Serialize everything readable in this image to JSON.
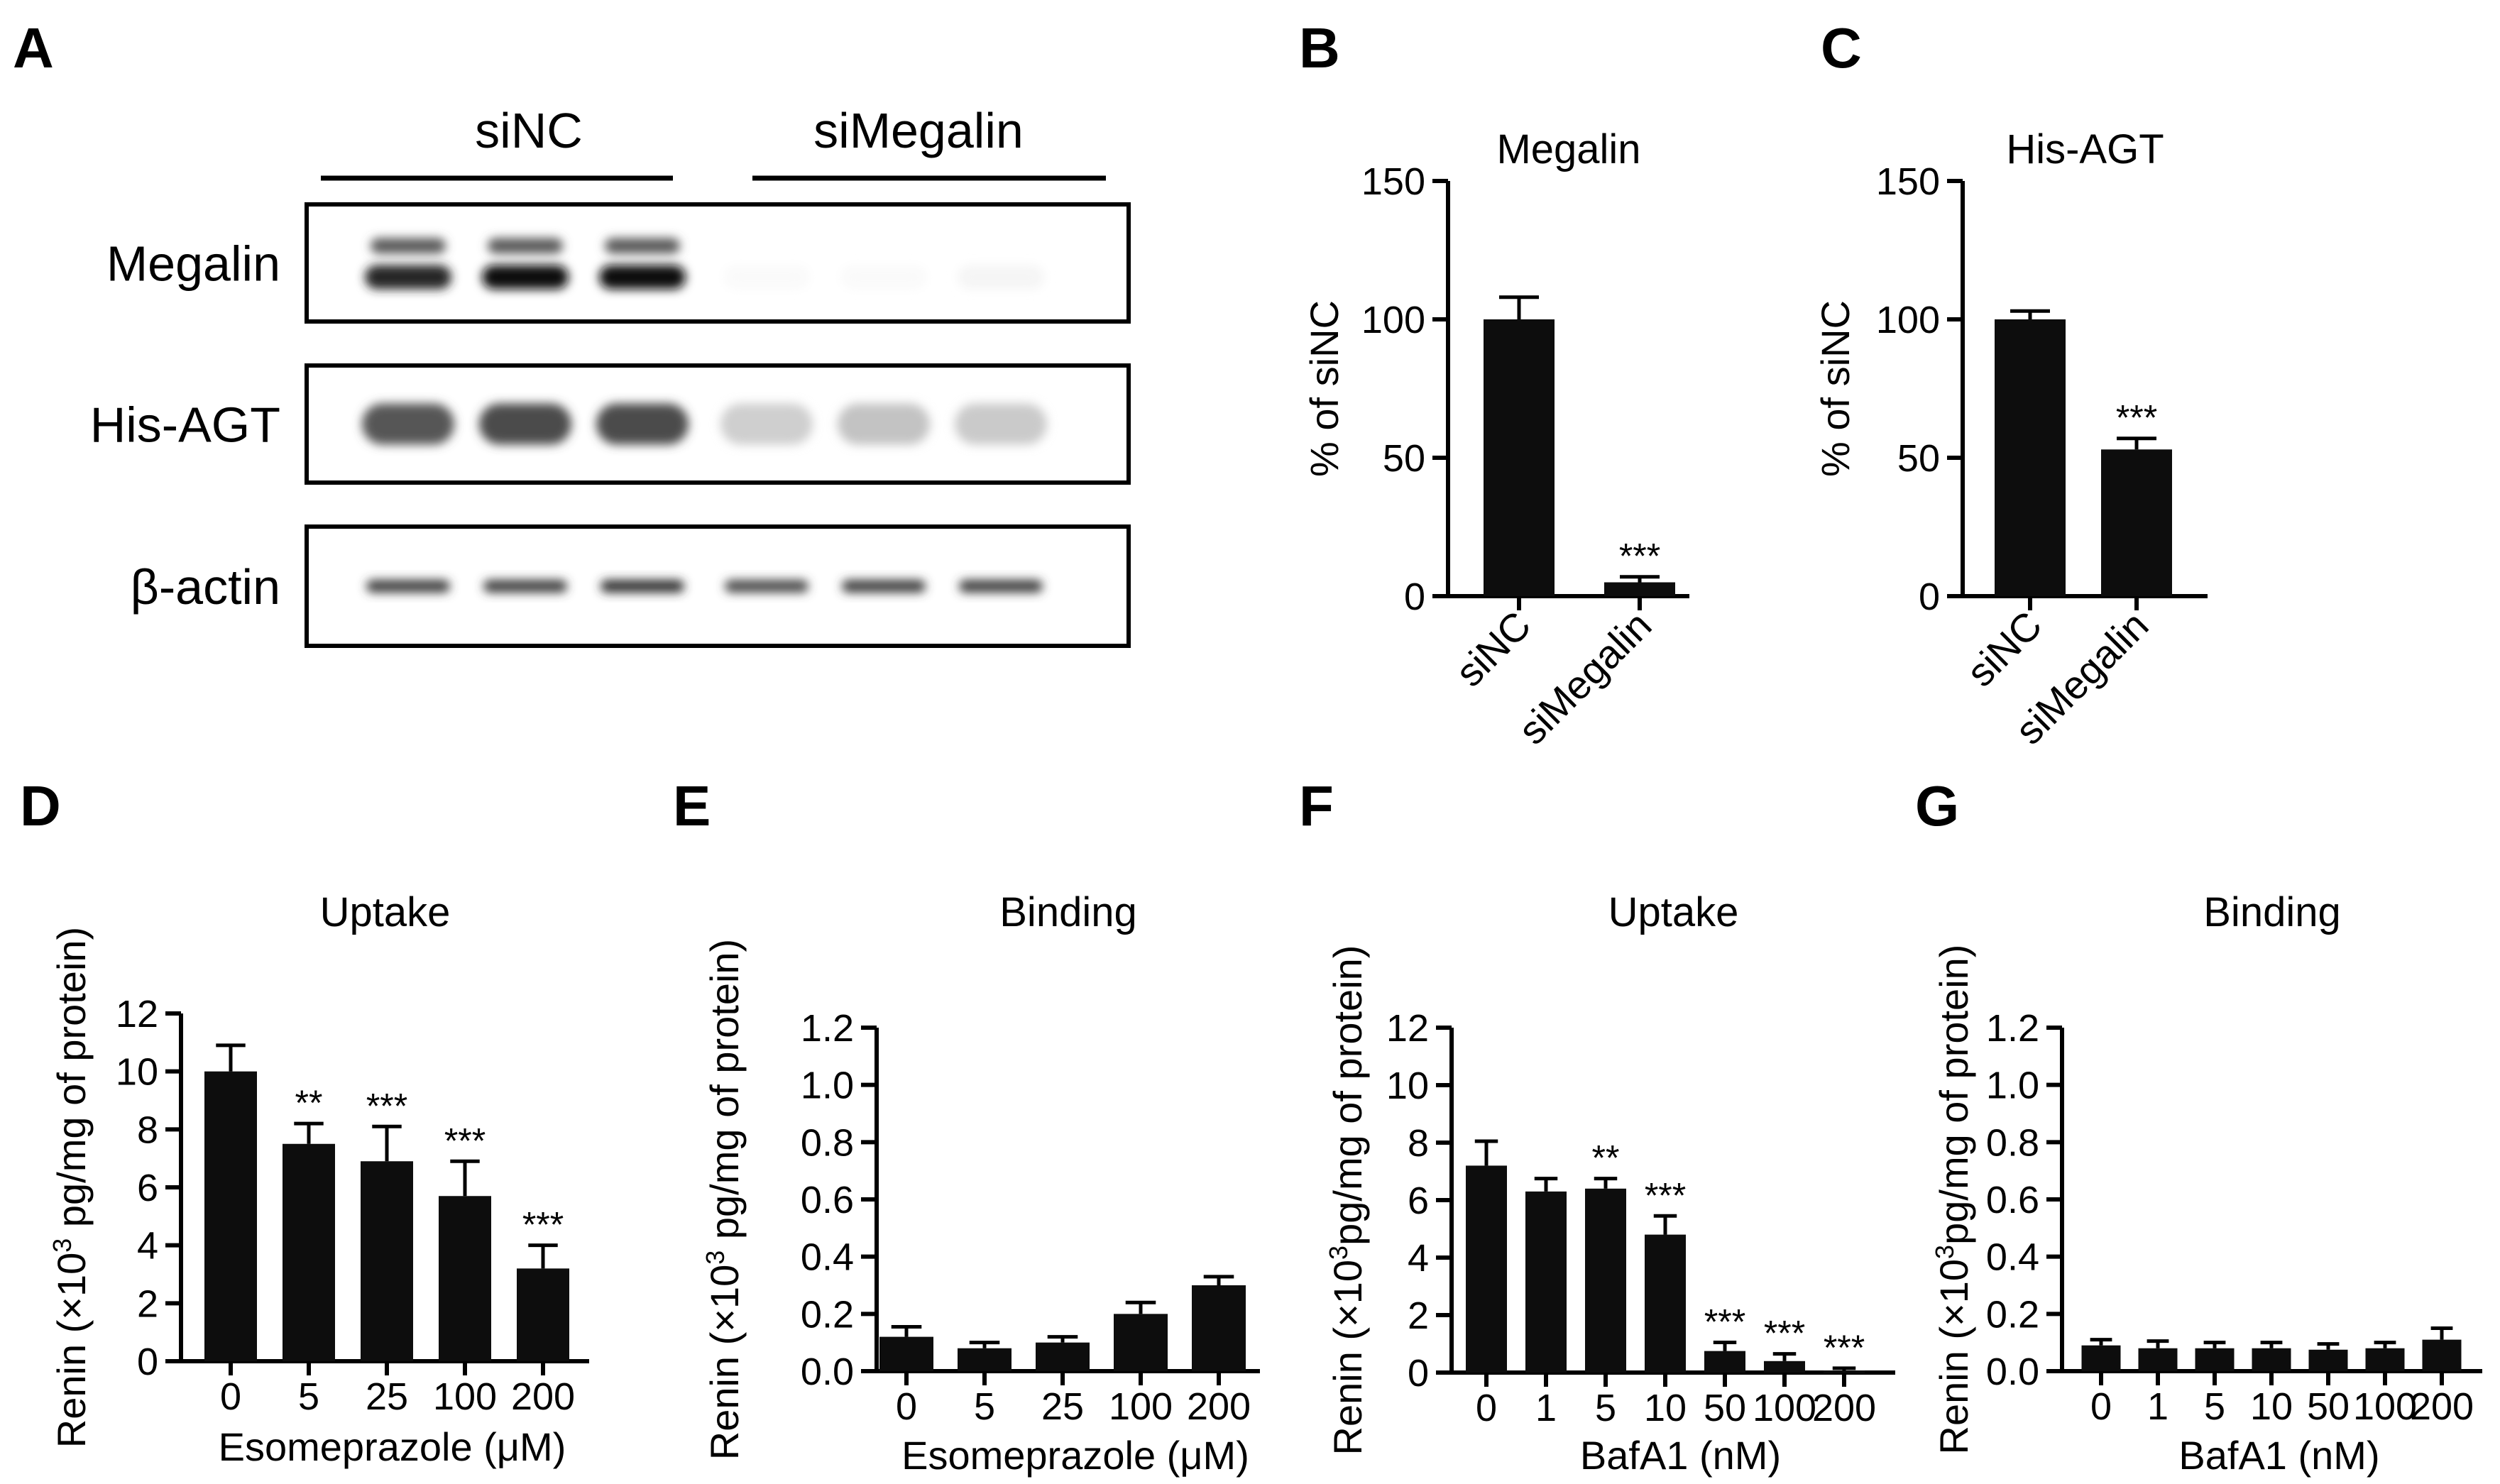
{
  "chart_data": [
    {
      "id": "A",
      "type": "western-blot",
      "panel": "A",
      "groups": [
        "siNC",
        "siMegalin"
      ],
      "rows": [
        "Megalin",
        "His-AGT",
        "β-actin"
      ],
      "lanes": 6,
      "intensity": [
        [
          0.9,
          1.0,
          1.0,
          0.02,
          0.02,
          0.04
        ],
        [
          0.7,
          0.75,
          0.75,
          0.2,
          0.25,
          0.22
        ],
        [
          0.8,
          0.8,
          0.85,
          0.75,
          0.8,
          0.8
        ]
      ]
    },
    {
      "id": "B",
      "type": "bar",
      "panel": "B",
      "title": "Megalin",
      "categories": [
        "siNC",
        "siMegalin"
      ],
      "values": [
        100,
        5
      ],
      "errors": [
        8,
        2
      ],
      "significance": [
        "",
        "***"
      ],
      "ylabel": "% of siNC",
      "xlabel": "",
      "ylim": [
        0,
        150
      ],
      "yticks": [
        "0",
        "50",
        "100",
        "150"
      ],
      "rotate_xticks": true
    },
    {
      "id": "C",
      "type": "bar",
      "panel": "C",
      "title": "His-AGT",
      "categories": [
        "siNC",
        "siMegalin"
      ],
      "values": [
        100,
        53
      ],
      "errors": [
        3,
        4
      ],
      "significance": [
        "",
        "***"
      ],
      "ylabel": "% of siNC",
      "xlabel": "",
      "ylim": [
        0,
        150
      ],
      "yticks": [
        "0",
        "50",
        "100",
        "150"
      ],
      "rotate_xticks": true
    },
    {
      "id": "D",
      "type": "bar",
      "panel": "D",
      "title": "Uptake",
      "categories": [
        "0",
        "5",
        "25",
        "100",
        "200"
      ],
      "values": [
        10.0,
        7.5,
        6.9,
        5.7,
        3.2
      ],
      "errors": [
        0.9,
        0.7,
        1.2,
        1.2,
        0.8
      ],
      "significance": [
        "",
        "**",
        "***",
        "***",
        "***"
      ],
      "ylabel_pre": "Renin (×10",
      "ylabel_sup": "3",
      "ylabel_post": " pg/mg of protein)",
      "xlabel": "Esomeprazole (μM)",
      "ylim": [
        0,
        12
      ],
      "yticks": [
        "0",
        "2",
        "4",
        "6",
        "8",
        "10",
        "12"
      ]
    },
    {
      "id": "E",
      "type": "bar",
      "panel": "E",
      "title": "Binding",
      "categories": [
        "0",
        "5",
        "25",
        "100",
        "200"
      ],
      "values": [
        0.12,
        0.08,
        0.1,
        0.2,
        0.3
      ],
      "errors": [
        0.035,
        0.02,
        0.02,
        0.04,
        0.03
      ],
      "significance": [
        "",
        "",
        "",
        "",
        ""
      ],
      "ylabel_pre": "Renin (×10",
      "ylabel_sup": "3",
      "ylabel_post": " pg/mg of protein)",
      "xlabel": "Esomeprazole (μM)",
      "ylim": [
        0,
        1.2
      ],
      "yticks": [
        "0.0",
        "0.2",
        "0.4",
        "0.6",
        "0.8",
        "1.0",
        "1.2"
      ]
    },
    {
      "id": "F",
      "type": "bar",
      "panel": "F",
      "title": "Uptake",
      "categories": [
        "0",
        "1",
        "5",
        "10",
        "50",
        "100",
        "200"
      ],
      "values": [
        7.2,
        6.3,
        6.4,
        4.8,
        0.75,
        0.4,
        0.05
      ],
      "errors": [
        0.85,
        0.45,
        0.35,
        0.65,
        0.3,
        0.25,
        0.1
      ],
      "significance": [
        "",
        "",
        "**",
        "***",
        "***",
        "***",
        "***"
      ],
      "ylabel_pre": "Renin (×10",
      "ylabel_sup": "3",
      "ylabel_post": "pg/mg of protein)",
      "xlabel": "BafA1 (nM)",
      "ylim": [
        0,
        12
      ],
      "yticks": [
        "0",
        "2",
        "4",
        "6",
        "8",
        "10",
        "12"
      ]
    },
    {
      "id": "G",
      "type": "bar",
      "panel": "G",
      "title": "Binding",
      "categories": [
        "0",
        "1",
        "5",
        "10",
        "50",
        "100",
        "200"
      ],
      "values": [
        0.09,
        0.08,
        0.08,
        0.08,
        0.075,
        0.08,
        0.11
      ],
      "errors": [
        0.02,
        0.025,
        0.02,
        0.02,
        0.02,
        0.02,
        0.04
      ],
      "significance": [
        "",
        "",
        "",
        "",
        "",
        "",
        ""
      ],
      "ylabel_pre": "Renin (×10",
      "ylabel_sup": "3",
      "ylabel_post": "pg/mg of protein)",
      "xlabel": "BafA1 (nM)",
      "ylim": [
        0,
        1.2
      ],
      "yticks": [
        "0.0",
        "0.2",
        "0.4",
        "0.6",
        "0.8",
        "1.0",
        "1.2"
      ]
    }
  ]
}
